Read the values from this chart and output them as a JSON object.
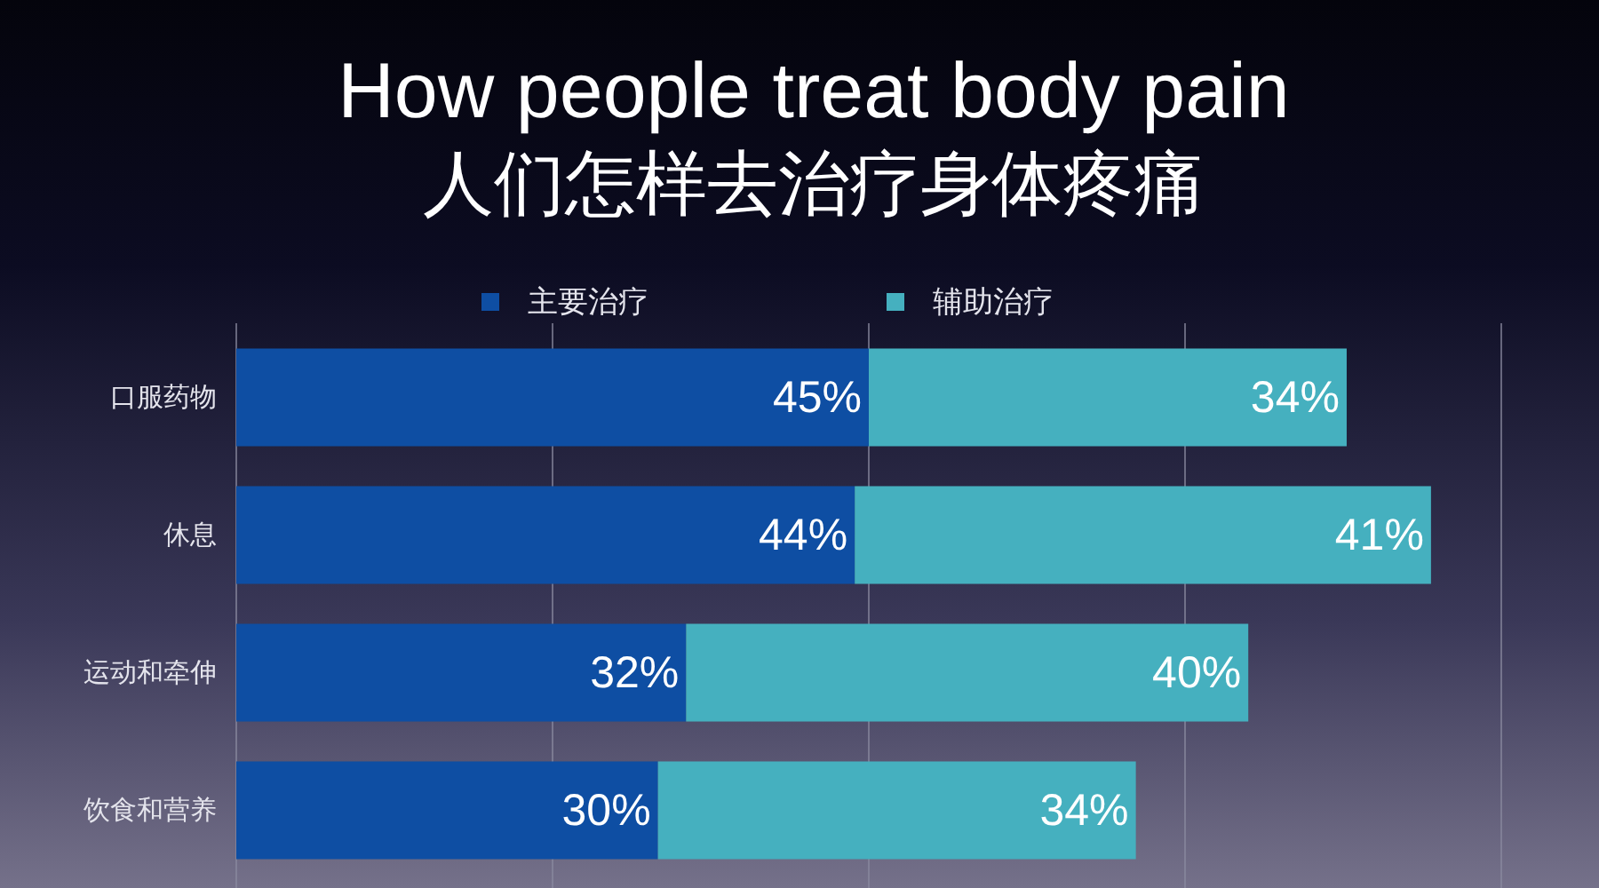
{
  "chart_data": {
    "type": "bar",
    "orientation": "horizontal",
    "stacked": true,
    "title": "How people treat body pain",
    "subtitle": "人们怎样去治疗身体疼痛",
    "categories": [
      "口服药物",
      "休息",
      "运动和牵伸",
      "饮食和营养"
    ],
    "series": [
      {
        "name": "主要治疗",
        "color": "#0e4ea3",
        "values": [
          45,
          44,
          32,
          30
        ],
        "value_labels": [
          "45%",
          "44%",
          "32%",
          "30%"
        ]
      },
      {
        "name": "辅助治疗",
        "color": "#45b0bf",
        "values": [
          34,
          41,
          40,
          34
        ],
        "value_labels": [
          "34%",
          "41%",
          "40%",
          "34%"
        ]
      }
    ],
    "xlim": [
      0,
      90
    ],
    "xticks": [
      {
        "value": 0,
        "label": null
      },
      {
        "value": 22.5,
        "label": null
      },
      {
        "value": 45,
        "label": null
      },
      {
        "value": 67.5,
        "label": null
      },
      {
        "value": 90,
        "label": null
      }
    ],
    "tick_labels": "y",
    "grid": "x",
    "legend": "top"
  }
}
